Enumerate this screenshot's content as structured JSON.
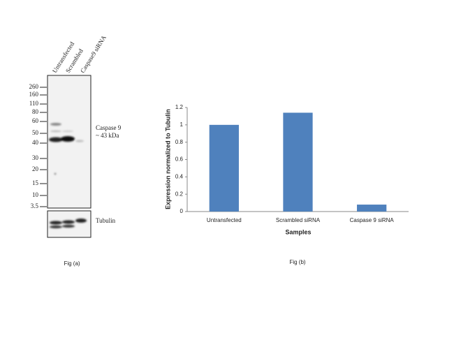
{
  "blot": {
    "lanes": [
      "Untransfected",
      "Scrambled",
      "Caspase9 siRNA"
    ],
    "markers": [
      260,
      160,
      110,
      80,
      60,
      50,
      40,
      30,
      20,
      15,
      10,
      3.5
    ],
    "band_label": "Caspase 9",
    "band_size": "~ 43 kDa",
    "loading_label": "Tubulin",
    "caption": "Fig (a)"
  },
  "chart_data": {
    "type": "bar",
    "categories": [
      "Untransfected",
      "Scrambled siRNA",
      "Caspase 9 siRNA"
    ],
    "values": [
      1.0,
      1.14,
      0.08
    ],
    "color": "#4f81bd",
    "ylim": [
      0,
      1.2
    ],
    "yticks": [
      0,
      0.2,
      0.4,
      0.6,
      0.8,
      1,
      1.2
    ],
    "xlabel": "Samples",
    "ylabel": "Expression normalized to Tubulin",
    "grid": false,
    "caption": "Fig (b)"
  }
}
